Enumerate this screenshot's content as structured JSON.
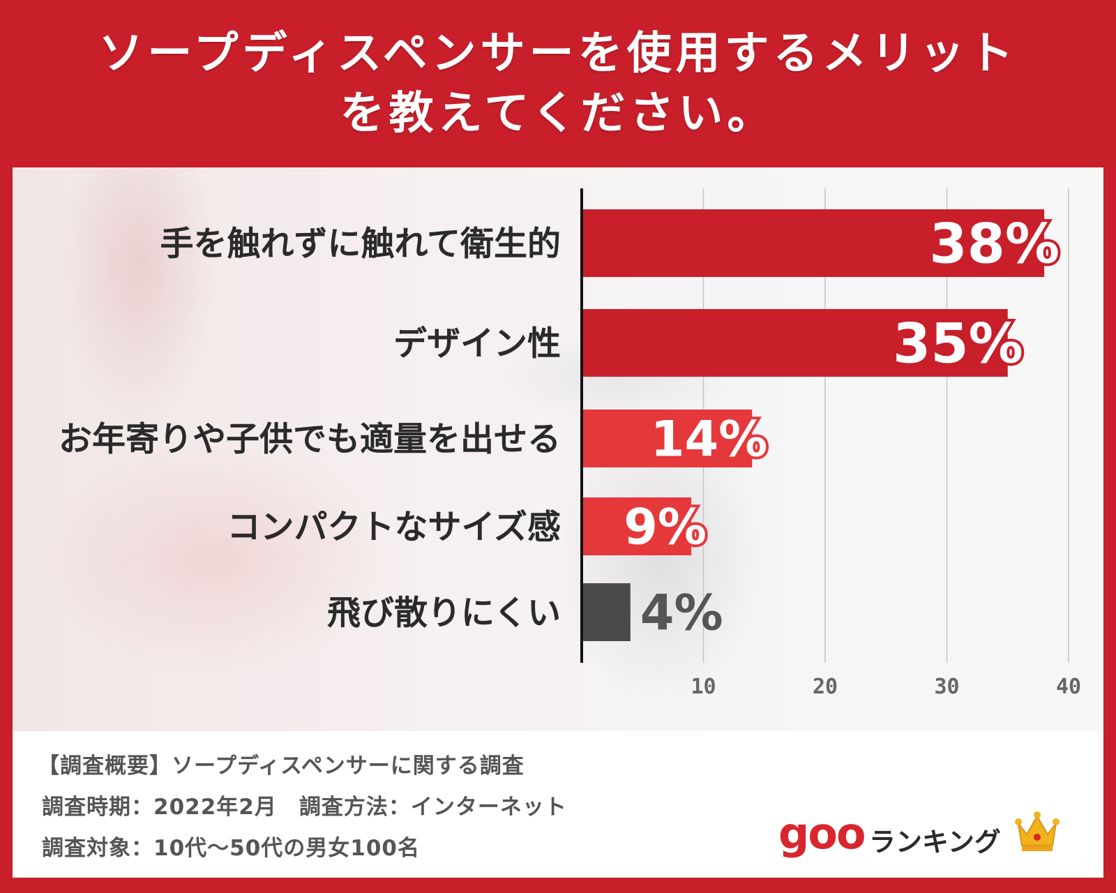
{
  "title": {
    "line1": "ソープディスペンサーを使用するメリット",
    "line2": "を教えてください。"
  },
  "chart_data": {
    "type": "bar",
    "orientation": "horizontal",
    "title": "ソープディスペンサーを使用するメリットを教えてください。",
    "categories": [
      "手を触れずに触れて衛生的",
      "デザイン性",
      "お年寄りや子供でも適量を出せる",
      "コンパクトなサイズ感",
      "飛び散りにくい"
    ],
    "values": [
      38,
      35,
      14,
      9,
      4
    ],
    "value_labels": [
      "38%",
      "35%",
      "14%",
      "9%",
      "4%"
    ],
    "x_ticks": [
      10,
      20,
      30,
      40
    ],
    "xlim": [
      0,
      40
    ],
    "grid": true,
    "bar_colors": [
      "#c81f2b",
      "#c81f2b",
      "#e5383b",
      "#e5383b",
      "#4a4a4a"
    ]
  },
  "survey": {
    "summary": "【調査概要】ソープディスペンサーに関する調査",
    "period": "調査時期：2022年2月　調査方法：インターネット",
    "target": "調査対象：10代〜50代の男女100名"
  },
  "logo": {
    "brand": "goo",
    "text": "ランキング",
    "icon": "crown-icon"
  }
}
